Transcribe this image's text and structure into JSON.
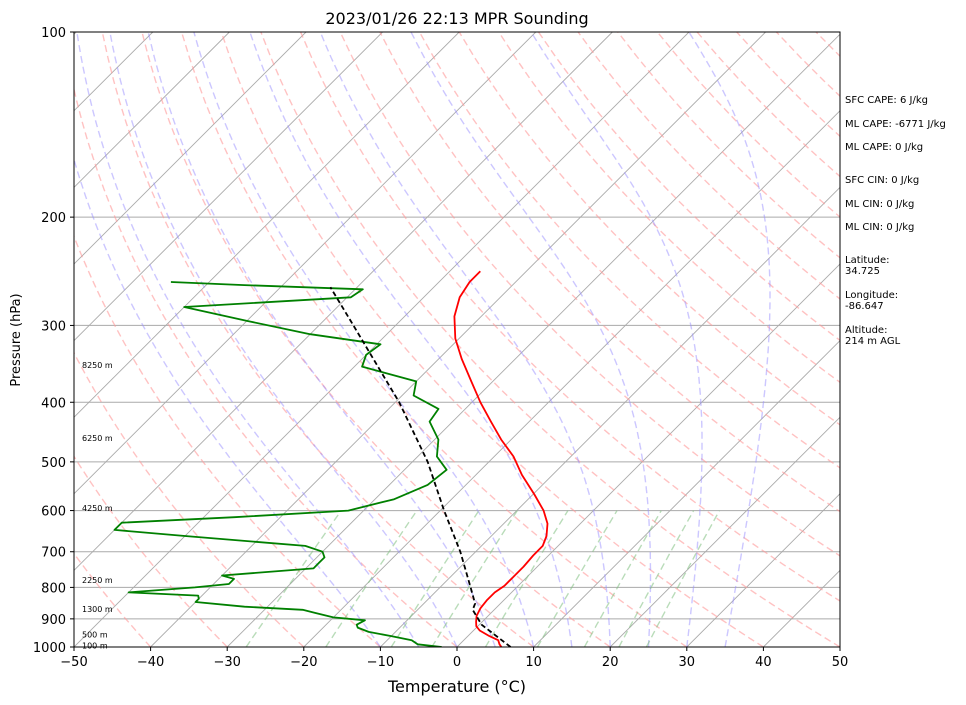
{
  "chart_data": {
    "type": "line",
    "title": "2023/01/26 22:13 MPR Sounding",
    "xlabel": "Temperature (°C)",
    "ylabel": "Pressure (hPa)",
    "xlim": [
      -50,
      50
    ],
    "ylim": [
      1000,
      100
    ],
    "y_scale": "log",
    "grid": true,
    "x_ticks": [
      "−50",
      "−40",
      "−30",
      "−20",
      "−10",
      "0",
      "10",
      "20",
      "30",
      "40",
      "50"
    ],
    "x_tick_values": [
      -50,
      -40,
      -30,
      -20,
      -10,
      0,
      10,
      20,
      30,
      40,
      50
    ],
    "y_ticks": [
      "100",
      "200",
      "300",
      "400",
      "500",
      "600",
      "700",
      "800",
      "900",
      "1000"
    ],
    "y_tick_values": [
      100,
      200,
      300,
      400,
      500,
      600,
      700,
      800,
      900,
      1000
    ],
    "height_labels": [
      {
        "text": "100 m",
        "p": 995
      },
      {
        "text": "500 m",
        "p": 955
      },
      {
        "text": "1300 m",
        "p": 868
      },
      {
        "text": "2250 m",
        "p": 778
      },
      {
        "text": "4250 m",
        "p": 594
      },
      {
        "text": "6250 m",
        "p": 457
      },
      {
        "text": "8250 m",
        "p": 348
      }
    ],
    "series": [
      {
        "role": "temperature",
        "color": "#ff0000",
        "points": [
          [
            1000,
            5.8
          ],
          [
            990,
            5.2
          ],
          [
            975,
            4.5
          ],
          [
            960,
            2.8
          ],
          [
            940,
            0.8
          ],
          [
            925,
            -0.2
          ],
          [
            910,
            -0.8
          ],
          [
            890,
            -1.5
          ],
          [
            865,
            -2.0
          ],
          [
            840,
            -2.2
          ],
          [
            815,
            -2.2
          ],
          [
            795,
            -1.8
          ],
          [
            770,
            -1.8
          ],
          [
            740,
            -1.8
          ],
          [
            710,
            -2.0
          ],
          [
            685,
            -2.0
          ],
          [
            660,
            -2.8
          ],
          [
            630,
            -4.3
          ],
          [
            600,
            -6.5
          ],
          [
            565,
            -9.8
          ],
          [
            525,
            -14.0
          ],
          [
            490,
            -17.5
          ],
          [
            460,
            -21.3
          ],
          [
            430,
            -25.0
          ],
          [
            400,
            -28.9
          ],
          [
            370,
            -32.8
          ],
          [
            340,
            -37.0
          ],
          [
            315,
            -40.5
          ],
          [
            290,
            -43.5
          ],
          [
            270,
            -45.3
          ],
          [
            255,
            -46.0
          ],
          [
            245,
            -46.0
          ]
        ]
      },
      {
        "role": "dewpoint",
        "color": "#008000",
        "points": [
          [
            1000,
            -2.0
          ],
          [
            990,
            -5.5
          ],
          [
            975,
            -6.8
          ],
          [
            960,
            -10.0
          ],
          [
            945,
            -13.5
          ],
          [
            930,
            -15.5
          ],
          [
            920,
            -16.0
          ],
          [
            905,
            -15.5
          ],
          [
            895,
            -20.0
          ],
          [
            880,
            -23.0
          ],
          [
            870,
            -25.0
          ],
          [
            860,
            -33.0
          ],
          [
            845,
            -40.0
          ],
          [
            835,
            -40.0
          ],
          [
            825,
            -40.5
          ],
          [
            815,
            -50.0
          ],
          [
            800,
            -42.0
          ],
          [
            790,
            -38.0
          ],
          [
            775,
            -38.0
          ],
          [
            765,
            -40.0
          ],
          [
            745,
            -29.0
          ],
          [
            730,
            -29.0
          ],
          [
            715,
            -29.0
          ],
          [
            700,
            -30.0
          ],
          [
            685,
            -33.0
          ],
          [
            660,
            -50.0
          ],
          [
            645,
            -60.0
          ],
          [
            628,
            -60.0
          ],
          [
            615,
            -46.0
          ],
          [
            600,
            -32.0
          ],
          [
            575,
            -27.5
          ],
          [
            545,
            -25.0
          ],
          [
            515,
            -24.5
          ],
          [
            490,
            -27.5
          ],
          [
            460,
            -29.5
          ],
          [
            430,
            -33.0
          ],
          [
            410,
            -33.5
          ],
          [
            390,
            -38.5
          ],
          [
            370,
            -40.0
          ],
          [
            350,
            -49.0
          ],
          [
            335,
            -50.0
          ],
          [
            322,
            -49.5
          ],
          [
            310,
            -60.0
          ],
          [
            295,
            -70.0
          ],
          [
            280,
            -80.0
          ],
          [
            270,
            -59.5
          ],
          [
            262,
            -59.0
          ],
          [
            258,
            -75.0
          ],
          [
            255,
            -85.0
          ]
        ]
      },
      {
        "role": "parcel",
        "color": "#000000",
        "dashed": true,
        "points": [
          [
            1000,
            7.0
          ],
          [
            920,
            0.3
          ],
          [
            870,
            -2.8
          ],
          [
            850,
            -3.3
          ],
          [
            800,
            -6.0
          ],
          [
            700,
            -12.0
          ],
          [
            600,
            -19.5
          ],
          [
            500,
            -28.0
          ],
          [
            400,
            -39.5
          ],
          [
            300,
            -55.5
          ],
          [
            260,
            -63.5
          ]
        ]
      }
    ]
  },
  "indices": {
    "sfc_cape": "SFC CAPE: 6 J/kg",
    "ml_cape_1": "ML CAPE: -6771 J/kg",
    "ml_cape_2": "ML CAPE: 0 J/kg",
    "sfc_cin": "SFC CIN: 0 J/kg",
    "ml_cin_1": "ML CIN: 0 J/kg",
    "ml_cin_2": "ML CIN: 0 J/kg",
    "latitude": "Latitude:\n34.725",
    "longitude": "Longitude:\n-86.647",
    "altitude": "Altitude:\n214 m AGL"
  },
  "colors": {
    "temperature": "#ff0000",
    "dewpoint": "#008000",
    "parcel": "#000000",
    "isotherm": "#aaaaaa",
    "dry_adiabat": "#ff9999",
    "moist_adiabat": "#9a8fff",
    "mixing_ratio": "#7fc07f"
  }
}
